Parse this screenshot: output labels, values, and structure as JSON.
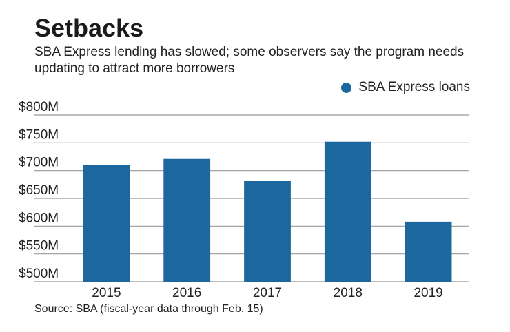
{
  "title": "Setbacks",
  "subtitle": "SBA Express lending has slowed; some observers say the program needs updating to attract more borrowers",
  "source": "Source: SBA (fiscal-year data through Feb. 15)",
  "colors": {
    "bar": "#1c679e",
    "grid": "#999999"
  },
  "chart_data": {
    "type": "bar",
    "title": "Setbacks",
    "xlabel": "",
    "ylabel": "",
    "categories": [
      "2015",
      "2016",
      "2017",
      "2018",
      "2019"
    ],
    "series": [
      {
        "name": "SBA Express loans",
        "values": [
          710,
          721,
          681,
          752,
          608
        ]
      }
    ],
    "ylim": [
      500,
      800
    ],
    "yticks": [
      500,
      550,
      600,
      650,
      700,
      750,
      800
    ],
    "ytick_labels": [
      "$500M",
      "$550M",
      "$600M",
      "$650M",
      "$700M",
      "$750M",
      "$800M"
    ],
    "grid": true,
    "legend_position": "top-right"
  }
}
